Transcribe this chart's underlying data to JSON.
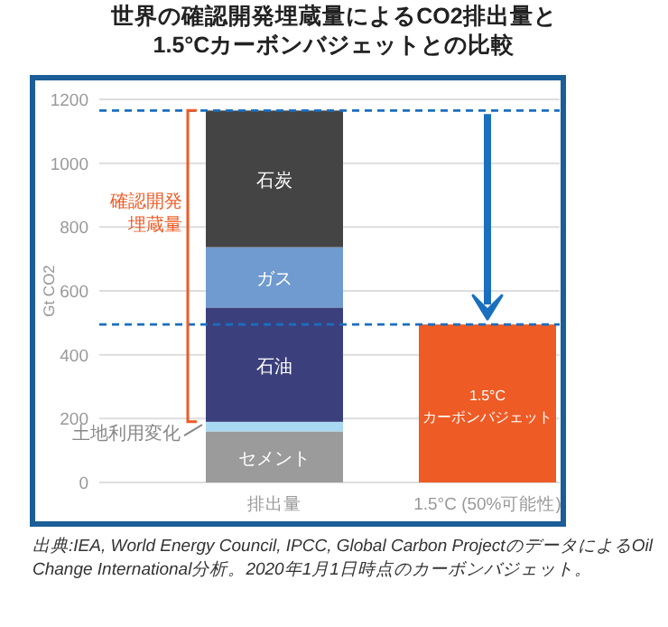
{
  "chart_data": {
    "type": "bar",
    "stacked": true,
    "title": "世界の確認開発埋蔵量によるCO2排出量と\n1.5°Cカーボンバジェットとの比較",
    "ylabel": "Gt  CO2",
    "categories": [
      "排出量",
      "1.5°C (50%可能性)"
    ],
    "series": [
      {
        "name": "セメント",
        "color": "#9b9b9b",
        "values": [
          160,
          null
        ]
      },
      {
        "name": "土地利用変化",
        "color": "#a9d9f2",
        "values": [
          30,
          null
        ]
      },
      {
        "name": "石油",
        "color": "#3b407c",
        "values": [
          358,
          null
        ]
      },
      {
        "name": "ガス",
        "color": "#6f9bd0",
        "values": [
          189,
          null
        ]
      },
      {
        "name": "石炭",
        "color": "#444444",
        "values": [
          428,
          null
        ]
      },
      {
        "name": "1.5°C\nカーボンバジェット",
        "color": "#ef5b25",
        "values": [
          null,
          495
        ]
      }
    ],
    "ylim": [
      0,
      1200
    ],
    "yticks": [
      0,
      200,
      400,
      600,
      800,
      1000,
      1200
    ],
    "grid": "y",
    "ref_lines": [
      {
        "axis": "y",
        "value": 1165,
        "label": null,
        "color": "#1a6fbf",
        "line_style": "dashed"
      },
      {
        "axis": "y",
        "value": 495,
        "label": null,
        "color": "#1a6fbf",
        "line_style": "dashed"
      }
    ],
    "annotations": [
      "確認開発埋蔵量",
      "出典:IEA, World Energy Council, IPCC, Global Carbon ProjectのデータによるOil Change International分析。2020年1月1日時点のカーボンバジェット。"
    ]
  }
}
